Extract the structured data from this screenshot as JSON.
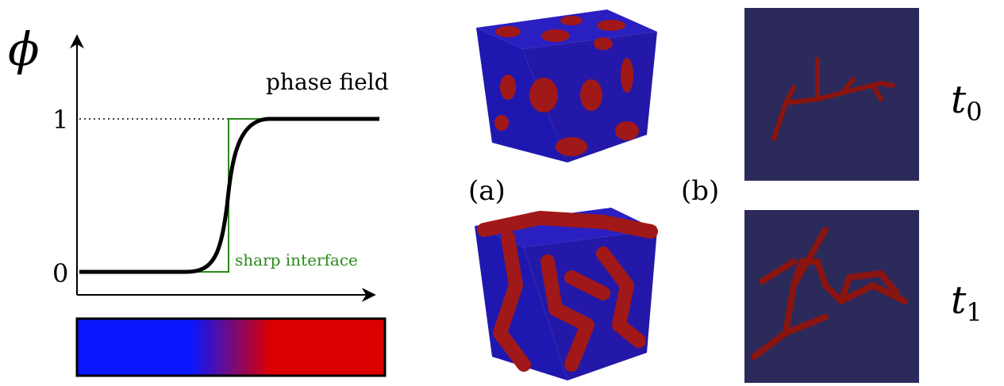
{
  "plot": {
    "y_symbol": "ϕ",
    "tick_one": "1",
    "tick_zero": "0",
    "phase_label": "phase field",
    "sharp_label": "sharp interface"
  },
  "panels": {
    "a_label": "(a)",
    "b_label": "(b)"
  },
  "times": {
    "t0": {
      "base": "t",
      "sub": "0"
    },
    "t1": {
      "base": "t",
      "sub": "1"
    }
  }
}
